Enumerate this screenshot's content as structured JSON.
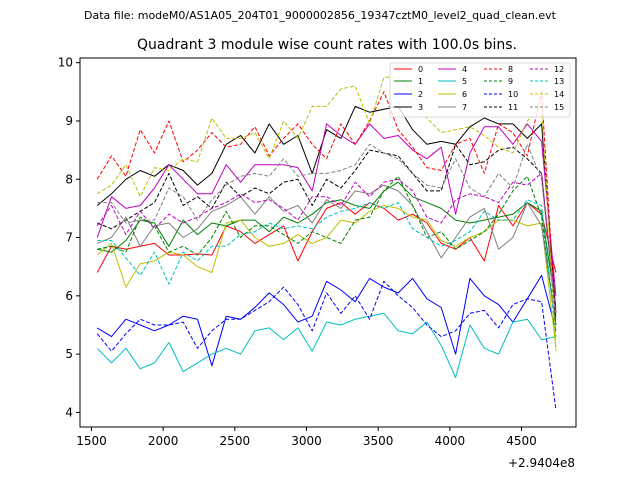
{
  "header": {
    "file_line": "Data file: modeM0/AS1A05_204T01_9000002856_19347cztM0_level2_quad_clean.evt"
  },
  "chart_data": {
    "type": "line",
    "title": "Quadrant 3 module wise count rates with 100.0s bins.",
    "xlabel": "",
    "ylabel": "",
    "x_offset_label": "+2.9404e8",
    "xlim": [
      1420,
      4880
    ],
    "ylim": [
      3.75,
      10.08
    ],
    "x_ticks": [
      1500,
      2000,
      2500,
      3000,
      3500,
      4000,
      4500
    ],
    "x_tick_labels": [
      "1500",
      "2000",
      "2500",
      "3000",
      "3500",
      "4000",
      "4500"
    ],
    "y_ticks": [
      4,
      5,
      6,
      7,
      8,
      9,
      10
    ],
    "y_tick_labels": [
      "4",
      "5",
      "6",
      "7",
      "8",
      "9",
      "10"
    ],
    "x": [
      1540,
      1640,
      1740,
      1840,
      1940,
      2040,
      2140,
      2240,
      2340,
      2440,
      2540,
      2640,
      2740,
      2840,
      2940,
      3040,
      3140,
      3240,
      3340,
      3440,
      3540,
      3640,
      3740,
      3840,
      3940,
      4040,
      4140,
      4240,
      4340,
      4440,
      4540,
      4640,
      4740
    ],
    "legend_position": "top-right",
    "series": [
      {
        "name": "0",
        "color": "#ff0000",
        "dash": "solid",
        "values": [
          6.4,
          6.85,
          6.8,
          6.85,
          6.9,
          6.7,
          6.7,
          6.72,
          6.7,
          7.2,
          7.1,
          6.9,
          7.05,
          7.2,
          6.6,
          7.1,
          7.5,
          7.6,
          7.4,
          7.6,
          7.5,
          7.3,
          7.4,
          7.25,
          6.9,
          6.8,
          7.0,
          6.6,
          7.55,
          7.2,
          7.6,
          7.4,
          6.4
        ]
      },
      {
        "name": "1",
        "color": "#008000",
        "dash": "solid",
        "values": [
          6.8,
          6.75,
          6.95,
          7.3,
          7.25,
          6.85,
          7.3,
          7.05,
          7.25,
          7.2,
          7.3,
          7.3,
          7.1,
          7.35,
          7.25,
          7.4,
          7.6,
          7.65,
          7.55,
          7.5,
          7.8,
          7.95,
          7.7,
          7.6,
          7.5,
          7.3,
          7.25,
          7.3,
          7.35,
          7.4,
          7.6,
          7.45,
          5.8
        ]
      },
      {
        "name": "2",
        "color": "#0000ff",
        "dash": "solid",
        "values": [
          5.45,
          5.3,
          5.6,
          5.5,
          5.4,
          5.5,
          5.65,
          5.6,
          4.8,
          5.65,
          5.6,
          5.8,
          6.05,
          5.85,
          5.55,
          5.65,
          6.25,
          6.1,
          5.9,
          6.3,
          6.15,
          6.05,
          6.3,
          5.95,
          5.8,
          5.0,
          6.3,
          6.0,
          5.85,
          5.55,
          5.95,
          6.35,
          5.4
        ]
      },
      {
        "name": "3",
        "color": "#000000",
        "dash": "solid",
        "values": [
          7.55,
          7.75,
          8.0,
          8.15,
          8.05,
          8.25,
          8.15,
          7.9,
          8.1,
          8.6,
          8.75,
          8.45,
          8.95,
          8.6,
          8.75,
          8.1,
          8.85,
          8.7,
          9.25,
          9.15,
          9.2,
          9.25,
          8.85,
          8.6,
          8.65,
          8.6,
          8.9,
          9.05,
          8.95,
          8.95,
          8.7,
          8.95,
          5.7
        ]
      },
      {
        "name": "4",
        "color": "#c000c0",
        "dash": "solid",
        "values": [
          7.0,
          7.7,
          7.5,
          7.55,
          7.85,
          8.25,
          8.0,
          7.75,
          7.75,
          8.25,
          7.95,
          8.25,
          8.25,
          8.25,
          8.2,
          7.8,
          8.95,
          8.75,
          8.6,
          8.95,
          8.7,
          8.75,
          8.5,
          8.35,
          8.55,
          7.4,
          8.45,
          8.9,
          8.9,
          8.6,
          8.95,
          8.65,
          6.0
        ]
      },
      {
        "name": "5",
        "color": "#00bfbf",
        "dash": "solid",
        "values": [
          5.1,
          4.85,
          5.1,
          4.75,
          4.85,
          5.2,
          4.7,
          4.85,
          5.0,
          5.1,
          5.0,
          5.4,
          5.45,
          5.25,
          5.45,
          5.05,
          5.55,
          5.5,
          5.6,
          5.65,
          5.7,
          5.4,
          5.35,
          5.55,
          5.15,
          4.6,
          5.5,
          5.1,
          5.0,
          5.55,
          5.6,
          5.25,
          5.3
        ]
      },
      {
        "name": "6",
        "color": "#bfbf00",
        "dash": "solid",
        "values": [
          6.7,
          6.9,
          6.15,
          6.55,
          6.6,
          6.75,
          6.7,
          6.5,
          6.4,
          7.25,
          7.3,
          7.0,
          6.85,
          6.9,
          7.05,
          6.9,
          7.0,
          7.3,
          7.25,
          7.45,
          7.55,
          7.5,
          7.35,
          7.3,
          6.95,
          6.85,
          7.0,
          7.1,
          7.3,
          7.3,
          7.2,
          7.25,
          5.1
        ]
      },
      {
        "name": "7",
        "color": "#808080",
        "dash": "solid",
        "values": [
          6.9,
          7.0,
          7.35,
          6.85,
          7.2,
          7.25,
          7.0,
          7.15,
          7.45,
          7.55,
          7.7,
          7.4,
          7.7,
          7.45,
          7.55,
          7.25,
          7.65,
          7.5,
          7.8,
          7.75,
          7.9,
          7.8,
          7.55,
          7.1,
          6.65,
          7.0,
          7.35,
          7.5,
          6.8,
          7.0,
          7.6,
          7.2,
          5.5
        ]
      },
      {
        "name": "8",
        "color": "#ff0000",
        "dash": "dashed",
        "values": [
          8.0,
          8.4,
          8.05,
          8.85,
          8.45,
          9.0,
          8.3,
          8.5,
          8.8,
          8.55,
          8.6,
          8.9,
          8.4,
          8.7,
          8.95,
          8.6,
          8.35,
          8.95,
          8.6,
          9.0,
          9.5,
          8.85,
          8.55,
          8.2,
          8.15,
          8.6,
          8.7,
          8.1,
          8.95,
          8.8,
          8.4,
          9.5,
          5.5
        ]
      },
      {
        "name": "9",
        "color": "#008000",
        "dash": "dashed",
        "values": [
          6.8,
          6.85,
          6.75,
          7.35,
          7.2,
          6.75,
          6.85,
          6.7,
          7.0,
          7.45,
          7.0,
          7.2,
          7.2,
          7.05,
          6.9,
          7.1,
          7.0,
          6.9,
          7.3,
          7.35,
          7.8,
          8.05,
          7.55,
          7.0,
          7.1,
          6.8,
          6.95,
          7.1,
          7.4,
          7.8,
          8.05,
          7.35,
          5.5
        ]
      },
      {
        "name": "10",
        "color": "#0000ff",
        "dash": "dashed",
        "values": [
          5.35,
          5.05,
          5.35,
          5.6,
          5.5,
          5.5,
          5.55,
          5.1,
          5.4,
          5.6,
          5.6,
          5.75,
          5.9,
          6.15,
          5.85,
          5.4,
          6.05,
          5.7,
          6.0,
          5.6,
          6.25,
          6.0,
          5.8,
          5.5,
          5.3,
          5.4,
          5.7,
          5.75,
          5.45,
          5.85,
          5.95,
          5.9,
          4.05
        ]
      },
      {
        "name": "11",
        "color": "#000000",
        "dash": "dashed",
        "values": [
          7.25,
          7.15,
          7.3,
          7.45,
          7.6,
          8.1,
          7.55,
          7.7,
          7.5,
          7.95,
          7.7,
          7.85,
          7.75,
          7.95,
          8.0,
          7.55,
          8.0,
          7.85,
          8.15,
          8.5,
          8.45,
          8.4,
          8.1,
          7.8,
          7.8,
          8.6,
          8.25,
          8.3,
          8.5,
          8.55,
          8.35,
          8.1,
          5.6
        ]
      },
      {
        "name": "12",
        "color": "#c000c0",
        "dash": "dashed",
        "values": [
          7.2,
          7.55,
          7.05,
          7.45,
          7.15,
          7.4,
          7.25,
          7.35,
          7.5,
          7.6,
          7.75,
          7.6,
          7.65,
          7.5,
          7.3,
          7.7,
          7.7,
          7.55,
          7.95,
          7.7,
          7.95,
          8.0,
          7.8,
          7.35,
          7.25,
          7.65,
          7.75,
          7.7,
          7.6,
          7.95,
          7.9,
          8.1,
          5.7
        ]
      },
      {
        "name": "13",
        "color": "#00bfbf",
        "dash": "dashed",
        "values": [
          6.95,
          6.95,
          6.65,
          6.35,
          6.75,
          6.2,
          6.75,
          6.6,
          6.85,
          6.85,
          7.05,
          7.1,
          7.25,
          7.15,
          7.2,
          7.15,
          7.35,
          7.45,
          7.5,
          7.6,
          7.5,
          7.6,
          7.15,
          7.0,
          6.85,
          6.95,
          7.1,
          7.45,
          7.3,
          7.3,
          7.65,
          7.55,
          5.3
        ]
      },
      {
        "name": "14",
        "color": "#bfbf00",
        "dash": "dashed",
        "values": [
          7.75,
          7.9,
          8.25,
          7.7,
          8.2,
          8.15,
          8.35,
          8.3,
          9.05,
          8.7,
          8.7,
          8.8,
          8.35,
          9.0,
          8.7,
          9.25,
          9.25,
          9.55,
          9.6,
          8.95,
          9.75,
          9.75,
          9.5,
          9.05,
          8.8,
          8.85,
          8.9,
          8.75,
          8.55,
          8.45,
          9.0,
          9.25,
          5.05
        ]
      },
      {
        "name": "15",
        "color": "#808080",
        "dash": "dashed",
        "values": [
          7.6,
          7.6,
          7.25,
          7.3,
          7.3,
          7.85,
          7.7,
          7.3,
          7.65,
          7.9,
          8.05,
          8.1,
          8.05,
          8.35,
          8.05,
          8.1,
          8.1,
          8.15,
          8.25,
          8.6,
          8.45,
          8.35,
          8.1,
          7.9,
          7.85,
          8.35,
          7.85,
          7.7,
          8.1,
          7.85,
          8.6,
          8.0,
          5.65
        ]
      }
    ]
  }
}
